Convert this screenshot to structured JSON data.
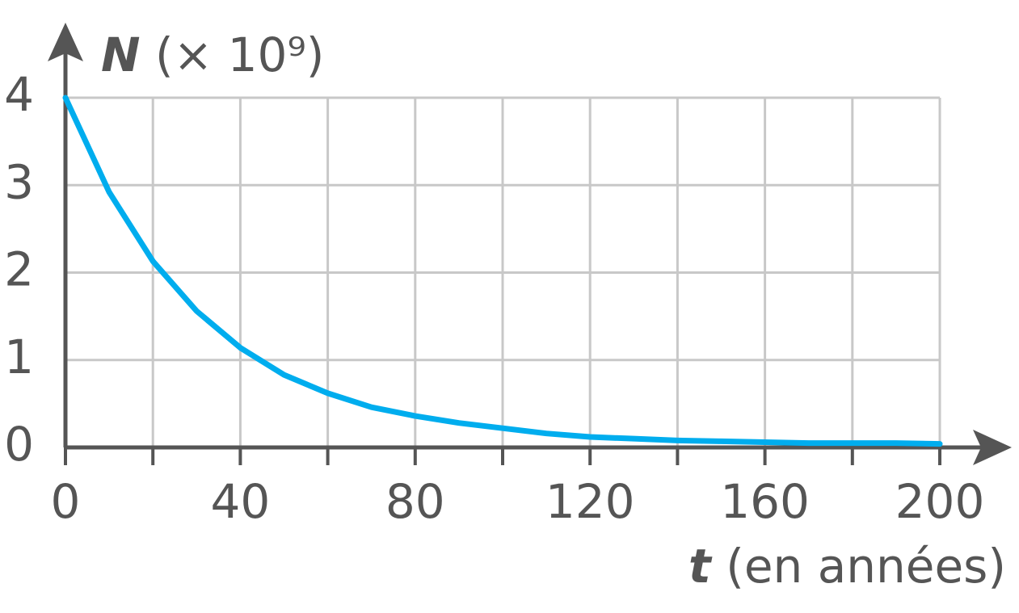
{
  "chart_data": {
    "type": "line",
    "y_label": {
      "symbol": "N",
      "unit": "(× 10⁹)"
    },
    "x_label": {
      "symbol": "t",
      "unit": "(en années)"
    },
    "x": [
      0,
      10,
      20,
      30,
      40,
      50,
      60,
      70,
      80,
      90,
      100,
      110,
      120,
      130,
      140,
      150,
      160,
      170,
      180,
      190,
      200
    ],
    "values": [
      4.0,
      2.92,
      2.13,
      1.56,
      1.14,
      0.83,
      0.62,
      0.46,
      0.36,
      0.28,
      0.22,
      0.16,
      0.12,
      0.1,
      0.08,
      0.07,
      0.06,
      0.05,
      0.05,
      0.05,
      0.04
    ],
    "color": "#00adee",
    "xlim": [
      0,
      200
    ],
    "ylim": [
      0,
      4
    ],
    "xticks": [
      0,
      40,
      80,
      120,
      160,
      200
    ],
    "xminorticks": [
      20,
      60,
      100,
      140,
      180
    ],
    "yticks": [
      0,
      1,
      2,
      3,
      4
    ],
    "grid": true
  }
}
